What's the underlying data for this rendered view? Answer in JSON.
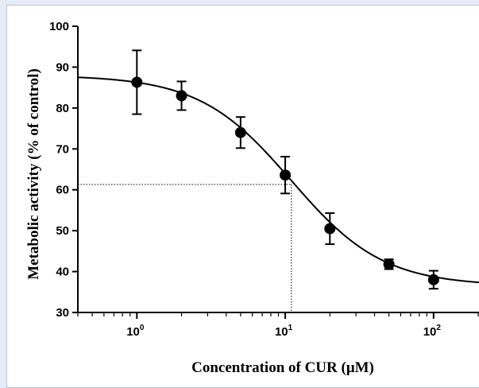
{
  "chart_data": {
    "type": "scatter",
    "title": "",
    "xlabel": "Concentration of CUR (μM)",
    "ylabel": "Metabolic activity (% of control)",
    "xscale": "log",
    "xlim": [
      0.4,
      210
    ],
    "ylim": [
      30,
      100
    ],
    "xticks": [
      {
        "value": 1,
        "base": "10",
        "exp": "0"
      },
      {
        "value": 10,
        "base": "10",
        "exp": "1"
      },
      {
        "value": 100,
        "base": "10",
        "exp": "2"
      }
    ],
    "yticks": [
      30,
      40,
      50,
      60,
      70,
      80,
      90,
      100
    ],
    "grid": false,
    "legend": "none",
    "series": [
      {
        "points": [
          {
            "x": 1,
            "y": 86.3,
            "err": 7.8
          },
          {
            "x": 2,
            "y": 83.0,
            "err": 3.5
          },
          {
            "x": 5,
            "y": 74.0,
            "err": 3.8
          },
          {
            "x": 10,
            "y": 63.6,
            "err": 4.5
          },
          {
            "x": 20,
            "y": 50.5,
            "err": 3.8
          },
          {
            "x": 50,
            "y": 41.8,
            "err": 1.2
          },
          {
            "x": 100,
            "y": 38.0,
            "err": 2.2
          }
        ]
      }
    ],
    "fit_curve": {
      "model": "4PL",
      "top": 88,
      "bottom": 36.5,
      "ec50": 11.0,
      "hill": 1.4
    },
    "reference": {
      "x": 11.0,
      "y": 61.3
    },
    "colors": {
      "marker": "#000000",
      "curve": "#000000",
      "axis": "#000000"
    }
  }
}
